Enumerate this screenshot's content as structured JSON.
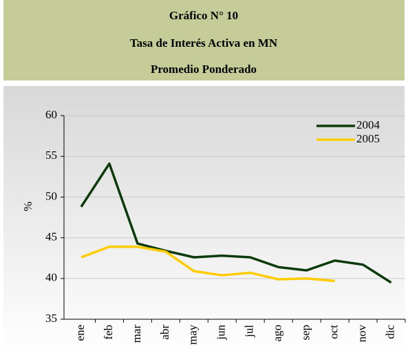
{
  "chart_data": {
    "type": "line",
    "title": "Gráfico N° 10",
    "subtitle": [
      "Tasa de Interés Activa en MN",
      "Promedio Ponderado"
    ],
    "y_label": "%",
    "categories": [
      "ene",
      "feb",
      "mar",
      "abr",
      "may",
      "jun",
      "jul",
      "ago",
      "sep",
      "oct",
      "nov",
      "dic"
    ],
    "series": [
      {
        "name": "2004",
        "color": "#0b3b0b",
        "values": [
          48.8,
          54.1,
          44.3,
          43.4,
          42.6,
          42.8,
          42.6,
          41.4,
          41.0,
          42.2,
          41.7,
          39.5
        ]
      },
      {
        "name": "2005",
        "color": "#ffcc00",
        "values": [
          42.6,
          43.9,
          43.9,
          43.3,
          40.9,
          40.4,
          40.7,
          39.9,
          40.0,
          39.7,
          null,
          null
        ]
      }
    ],
    "ylim": [
      35,
      60
    ],
    "yticks": [
      35,
      40,
      45,
      50,
      55,
      60
    ],
    "grid": true,
    "legend": "top-right"
  }
}
